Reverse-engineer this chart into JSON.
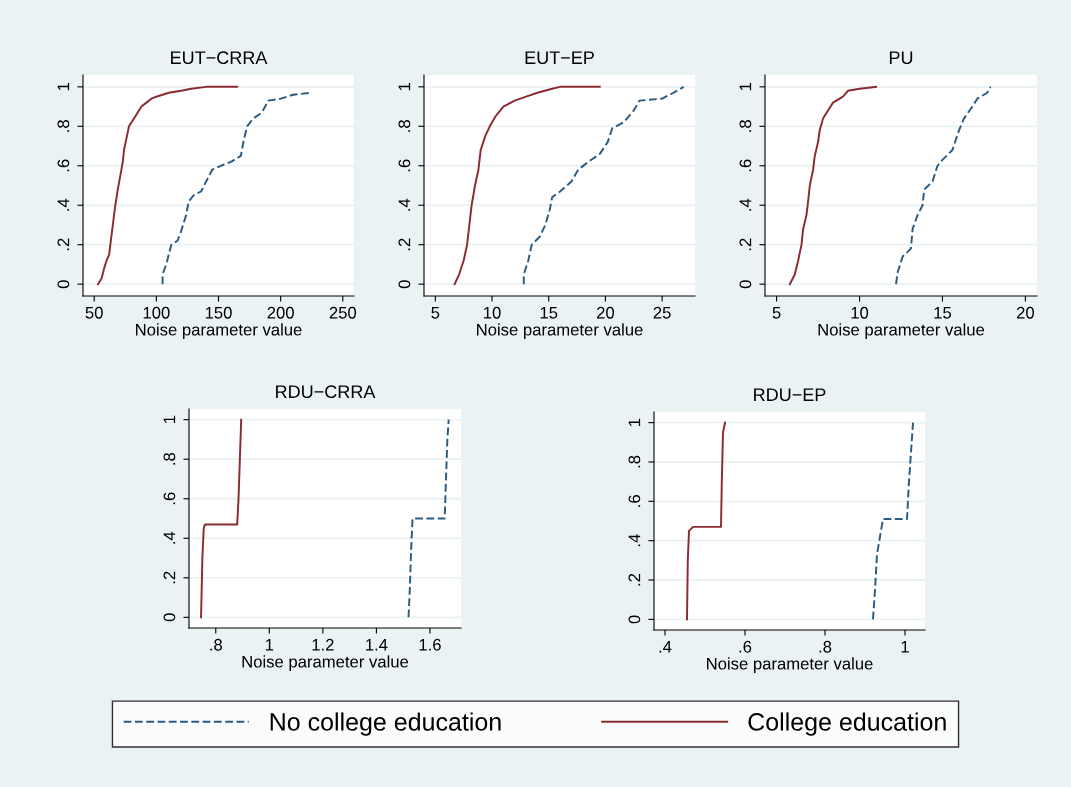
{
  "chart_data": [
    {
      "type": "line",
      "title": "EUT−CRRA",
      "xlabel": "Noise parameter value",
      "xlim": [
        41,
        259
      ],
      "xticks": [
        50,
        100,
        150,
        200,
        250
      ],
      "ylim": [
        -0.06,
        1.06
      ],
      "yticks": [
        0,
        {
          "value": 0.2,
          "label": ".2"
        },
        {
          "value": 0.4,
          "label": ".4"
        },
        {
          "value": 0.6,
          "label": ".6"
        },
        {
          "value": 0.8,
          "label": ".8"
        },
        1
      ],
      "grid": "y",
      "legend": "bottom",
      "series": [
        {
          "name": "No college education",
          "color": "#2b5a82",
          "line_style": "dashed",
          "x": [
            105,
            105,
            108,
            110,
            112,
            117,
            120,
            124,
            126,
            130,
            136,
            140,
            145,
            152,
            160,
            168,
            170,
            173,
            178,
            185,
            190,
            200,
            210,
            225
          ],
          "values": [
            0,
            0.05,
            0.1,
            0.15,
            0.2,
            0.22,
            0.27,
            0.35,
            0.42,
            0.45,
            0.47,
            0.52,
            0.58,
            0.6,
            0.62,
            0.65,
            0.72,
            0.8,
            0.84,
            0.87,
            0.93,
            0.94,
            0.96,
            0.97
          ]
        },
        {
          "name": "College education",
          "color": "#8b2b31",
          "line_style": "solid",
          "x": [
            53,
            56,
            58,
            60,
            62,
            63,
            65,
            67,
            69,
            71,
            73,
            74,
            76,
            78,
            82,
            85,
            88,
            92,
            96,
            100,
            110,
            120,
            128,
            140,
            165
          ],
          "values": [
            0,
            0.03,
            0.08,
            0.12,
            0.15,
            0.2,
            0.3,
            0.4,
            0.48,
            0.55,
            0.62,
            0.68,
            0.74,
            0.8,
            0.84,
            0.87,
            0.9,
            0.92,
            0.94,
            0.95,
            0.97,
            0.98,
            0.99,
            1,
            1
          ]
        }
      ]
    },
    {
      "type": "line",
      "title": "EUT−EP",
      "xlabel": "Noise parameter value",
      "xlim": [
        4,
        27.9
      ],
      "xticks": [
        5,
        10,
        15,
        20,
        25
      ],
      "ylim": [
        -0.06,
        1.06
      ],
      "yticks": [
        0,
        {
          "value": 0.2,
          "label": ".2"
        },
        {
          "value": 0.4,
          "label": ".4"
        },
        {
          "value": 0.6,
          "label": ".6"
        },
        {
          "value": 0.8,
          "label": ".8"
        },
        1
      ],
      "grid": "y",
      "series": [
        {
          "color": "#2b5a82",
          "line_style": "dashed",
          "x": [
            12.8,
            12.8,
            13.2,
            13.5,
            14.2,
            14.7,
            15.1,
            15.3,
            16,
            17,
            17.6,
            18.5,
            19.5,
            20.2,
            20.6,
            21.6,
            22.5,
            23,
            25,
            26,
            26.9
          ],
          "values": [
            0,
            0.05,
            0.12,
            0.2,
            0.24,
            0.3,
            0.38,
            0.44,
            0.47,
            0.52,
            0.58,
            0.62,
            0.66,
            0.72,
            0.79,
            0.82,
            0.88,
            0.93,
            0.94,
            0.97,
            1
          ]
        },
        {
          "color": "#8b2b31",
          "line_style": "solid",
          "x": [
            6.7,
            7.1,
            7.5,
            7.8,
            8.0,
            8.2,
            8.5,
            8.8,
            9.0,
            9.4,
            9.8,
            10.3,
            11,
            12,
            13,
            14,
            15.3,
            16,
            19.5
          ],
          "values": [
            0,
            0.05,
            0.12,
            0.2,
            0.3,
            0.4,
            0.5,
            0.58,
            0.68,
            0.75,
            0.8,
            0.85,
            0.9,
            0.93,
            0.95,
            0.97,
            0.99,
            1,
            1
          ]
        }
      ]
    },
    {
      "type": "line",
      "title": "PU",
      "xlabel": "Noise parameter value",
      "xlim": [
        4.3,
        20.7
      ],
      "xticks": [
        5,
        10,
        15,
        20
      ],
      "ylim": [
        -0.06,
        1.06
      ],
      "yticks": [
        0,
        {
          "value": 0.2,
          "label": ".2"
        },
        {
          "value": 0.4,
          "label": ".4"
        },
        {
          "value": 0.6,
          "label": ".6"
        },
        {
          "value": 0.8,
          "label": ".8"
        },
        1
      ],
      "grid": "y",
      "series": [
        {
          "color": "#2b5a82",
          "line_style": "dashed",
          "x": [
            12.2,
            12.3,
            12.6,
            13.1,
            13.2,
            13.5,
            13.8,
            13.9,
            14.4,
            14.7,
            15,
            15.6,
            16.0,
            16.3,
            16.8,
            17.1,
            17.7,
            17.9
          ],
          "values": [
            0,
            0.06,
            0.14,
            0.18,
            0.28,
            0.35,
            0.4,
            0.48,
            0.52,
            0.6,
            0.63,
            0.68,
            0.78,
            0.84,
            0.9,
            0.94,
            0.97,
            1
          ]
        },
        {
          "color": "#8b2b31",
          "line_style": "solid",
          "x": [
            5.8,
            6.1,
            6.3,
            6.5,
            6.6,
            6.8,
            6.9,
            7.0,
            7.2,
            7.3,
            7.5,
            7.6,
            7.8,
            8.1,
            8.4,
            9,
            9.3,
            10,
            11
          ],
          "values": [
            0,
            0.05,
            0.12,
            0.2,
            0.28,
            0.35,
            0.42,
            0.5,
            0.58,
            0.65,
            0.72,
            0.78,
            0.84,
            0.88,
            0.92,
            0.95,
            0.98,
            0.99,
            1
          ]
        }
      ]
    },
    {
      "type": "line",
      "title": "RDU−CRRA",
      "xlabel": "Noise parameter value",
      "xlim": [
        0.7,
        1.716
      ],
      "xticks": [
        {
          "value": 0.8,
          "label": ".8"
        },
        1,
        1.2,
        1.4,
        1.6
      ],
      "ylim": [
        -0.054,
        1.054
      ],
      "yticks": [
        0,
        {
          "value": 0.2,
          "label": ".2"
        },
        {
          "value": 0.4,
          "label": ".4"
        },
        {
          "value": 0.6,
          "label": ".6"
        },
        {
          "value": 0.8,
          "label": ".8"
        },
        1
      ],
      "grid": "y",
      "series": [
        {
          "color": "#2b5a82",
          "line_style": "dashed",
          "x": [
            1.52,
            1.525,
            1.53,
            1.535,
            1.655,
            1.66,
            1.665,
            1.67
          ],
          "values": [
            0,
            0.15,
            0.35,
            0.5,
            0.5,
            0.7,
            0.9,
            1
          ]
        },
        {
          "color": "#8b2b31",
          "line_style": "solid",
          "x": [
            0.745,
            0.75,
            0.755,
            0.76,
            0.88,
            0.885,
            0.89,
            0.895
          ],
          "values": [
            0,
            0.3,
            0.45,
            0.47,
            0.47,
            0.6,
            0.8,
            1
          ]
        }
      ]
    },
    {
      "type": "line",
      "title": "RDU−EP",
      "xlabel": "Noise parameter value",
      "xlim": [
        0.3725,
        1.05
      ],
      "xticks": [
        {
          "value": 0.4,
          "label": ".4"
        },
        {
          "value": 0.6,
          "label": ".6"
        },
        {
          "value": 0.8,
          "label": ".8"
        },
        1
      ],
      "ylim": [
        -0.054,
        1.054
      ],
      "yticks": [
        0,
        {
          "value": 0.2,
          "label": ".2"
        },
        {
          "value": 0.4,
          "label": ".4"
        },
        {
          "value": 0.6,
          "label": ".6"
        },
        {
          "value": 0.8,
          "label": ".8"
        },
        1
      ],
      "grid": "y",
      "series": [
        {
          "color": "#2b5a82",
          "line_style": "dashed",
          "x": [
            0.92,
            0.925,
            0.93,
            0.94,
            0.945,
            1.005,
            1.01,
            1.02
          ],
          "values": [
            0,
            0.15,
            0.33,
            0.45,
            0.51,
            0.51,
            0.7,
            1
          ]
        },
        {
          "color": "#8b2b31",
          "line_style": "solid",
          "x": [
            0.455,
            0.457,
            0.46,
            0.47,
            0.54,
            0.542,
            0.545,
            0.55
          ],
          "values": [
            0,
            0.3,
            0.45,
            0.47,
            0.47,
            0.7,
            0.95,
            1
          ]
        }
      ]
    }
  ]
}
